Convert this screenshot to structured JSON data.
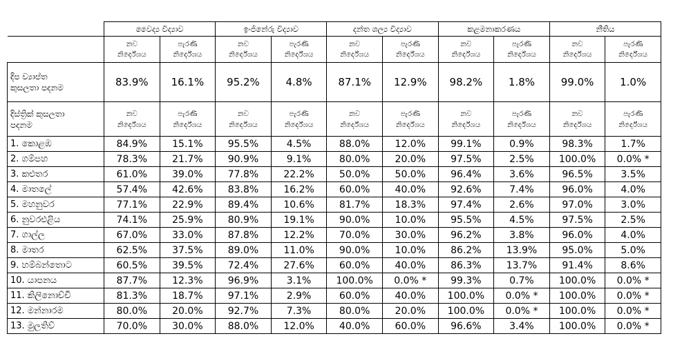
{
  "header": {
    "groups": [
      "වෛද්‍ය විද්‍යාව",
      "ඉංජිනේරු විද්‍යාව",
      "දන්ත ශල්‍ය විද්‍යාව",
      "කළමනාකරණය",
      "නීතිය"
    ],
    "new_label": "නව\nනිර්දේශය",
    "old_label": "පැරණි\nනිර්දේශය"
  },
  "island": {
    "label": "දිප ව්‍යාප්ත\nකුසලතා පදනම",
    "values": [
      "83.9%",
      "16.1%",
      "95.2%",
      "4.8%",
      "87.1%",
      "12.9%",
      "98.2%",
      "1.8%",
      "99.0%",
      "1.0%"
    ]
  },
  "district_header": {
    "label": "දිස්ත්‍රික් කුසලතා\nපදනම"
  },
  "districts": [
    {
      "name": "1. කොළඹ",
      "values": [
        "84.9%",
        "15.1%",
        "95.5%",
        "4.5%",
        "88.0%",
        "12.0%",
        "99.1%",
        "0.9%",
        "98.3%",
        "1.7%"
      ]
    },
    {
      "name": "2. ගම්පහ",
      "values": [
        "78.3%",
        "21.7%",
        "90.9%",
        "9.1%",
        "80.0%",
        "20.0%",
        "97.5%",
        "2.5%",
        "100.0%",
        "0.0% *"
      ]
    },
    {
      "name": "3. කළුතර",
      "values": [
        "61.0%",
        "39.0%",
        "77.8%",
        "22.2%",
        "50.0%",
        "50.0%",
        "96.4%",
        "3.6%",
        "96.5%",
        "3.5%"
      ]
    },
    {
      "name": "4. මාතලේ",
      "values": [
        "57.4%",
        "42.6%",
        "83.8%",
        "16.2%",
        "60.0%",
        "40.0%",
        "92.6%",
        "7.4%",
        "96.0%",
        "4.0%"
      ]
    },
    {
      "name": "5. මහනුවර",
      "values": [
        "77.1%",
        "22.9%",
        "89.4%",
        "10.6%",
        "81.7%",
        "18.3%",
        "97.4%",
        "2.6%",
        "97.0%",
        "3.0%"
      ]
    },
    {
      "name": "6. නුවරඑළිය",
      "values": [
        "74.1%",
        "25.9%",
        "80.9%",
        "19.1%",
        "90.0%",
        "10.0%",
        "95.5%",
        "4.5%",
        "97.5%",
        "2.5%"
      ]
    },
    {
      "name": "7. ගාල්ල",
      "values": [
        "67.0%",
        "33.0%",
        "87.8%",
        "12.2%",
        "70.0%",
        "30.0%",
        "96.2%",
        "3.8%",
        "96.0%",
        "4.0%"
      ]
    },
    {
      "name": "8. මාතර",
      "values": [
        "62.5%",
        "37.5%",
        "89.0%",
        "11.0%",
        "90.0%",
        "10.0%",
        "86.2%",
        "13.9%",
        "95.0%",
        "5.0%"
      ]
    },
    {
      "name": "9. හම්බන්තොට",
      "values": [
        "60.5%",
        "39.5%",
        "72.4%",
        "27.6%",
        "60.0%",
        "40.0%",
        "86.3%",
        "13.7%",
        "91.4%",
        "8.6%"
      ]
    },
    {
      "name": "10. යාපනය",
      "values": [
        "87.7%",
        "12.3%",
        "96.9%",
        "3.1%",
        "100.0%",
        "0.0% *",
        "99.3%",
        "0.7%",
        "100.0%",
        "0.0% *"
      ]
    },
    {
      "name": "11. කිලිනොච්චි",
      "values": [
        "81.3%",
        "18.7%",
        "97.1%",
        "2.9%",
        "60.0%",
        "40.0%",
        "100.0%",
        "0.0% *",
        "100.0%",
        "0.0% *"
      ]
    },
    {
      "name": "12. මන්නාරම",
      "values": [
        "80.0%",
        "20.0%",
        "92.7%",
        "7.3%",
        "80.0%",
        "20.0%",
        "100.0%",
        "0.0% *",
        "100.0%",
        "0.0% *"
      ]
    },
    {
      "name": "13. මුලතිව්",
      "values": [
        "70.0%",
        "30.0%",
        "88.0%",
        "12.0%",
        "40.0%",
        "60.0%",
        "96.6%",
        "3.4%",
        "100.0%",
        "0.0% *"
      ]
    }
  ]
}
